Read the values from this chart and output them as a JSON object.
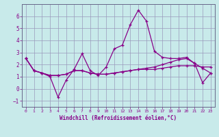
{
  "xlabel": "Windchill (Refroidissement éolien,°C)",
  "background_color": "#c8eaea",
  "grid_color": "#9999bb",
  "line_color": "#880088",
  "xlim": [
    -0.5,
    23.5
  ],
  "ylim": [
    -1.5,
    7.0
  ],
  "yticks": [
    -1,
    0,
    1,
    2,
    3,
    4,
    5,
    6
  ],
  "xticks": [
    0,
    1,
    2,
    3,
    4,
    5,
    6,
    7,
    8,
    9,
    10,
    11,
    12,
    13,
    14,
    15,
    16,
    17,
    18,
    19,
    20,
    21,
    22,
    23
  ],
  "series": [
    [
      2.5,
      1.5,
      1.3,
      1.0,
      -0.7,
      0.7,
      1.6,
      2.9,
      1.5,
      1.1,
      1.8,
      3.3,
      3.6,
      5.3,
      6.5,
      5.6,
      3.1,
      2.6,
      2.5,
      2.5,
      2.6,
      2.1,
      0.5,
      1.3
    ],
    [
      2.5,
      1.5,
      1.3,
      1.1,
      1.1,
      1.2,
      1.5,
      1.5,
      1.3,
      1.2,
      1.2,
      1.3,
      1.4,
      1.5,
      1.6,
      1.6,
      1.6,
      1.7,
      1.8,
      1.9,
      1.9,
      1.9,
      1.8,
      1.8
    ],
    [
      2.5,
      1.5,
      1.3,
      1.1,
      1.1,
      1.2,
      1.5,
      1.5,
      1.3,
      1.2,
      1.2,
      1.3,
      1.4,
      1.5,
      1.6,
      1.7,
      1.8,
      2.0,
      2.2,
      2.4,
      2.5,
      2.1,
      1.7,
      1.3
    ]
  ]
}
